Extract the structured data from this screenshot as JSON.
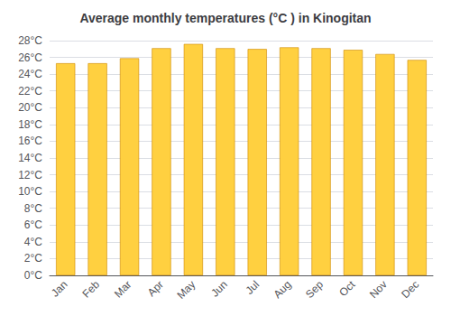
{
  "chart_data": {
    "type": "bar",
    "title": "Average monthly temperatures (°C ) in Kinogitan",
    "categories": [
      "Jan",
      "Feb",
      "Mar",
      "Apr",
      "May",
      "Jun",
      "Jul",
      "Aug",
      "Sep",
      "Oct",
      "Nov",
      "Dec"
    ],
    "values": [
      25.3,
      25.3,
      25.9,
      27.1,
      27.6,
      27.1,
      27.0,
      27.2,
      27.1,
      26.9,
      26.4,
      25.7
    ],
    "color": "#FFD040",
    "ylim": [
      0,
      28
    ],
    "yticks": [
      {
        "value": 0,
        "label": "0°C"
      },
      {
        "value": 2,
        "label": "2°C"
      },
      {
        "value": 4,
        "label": "4°C"
      },
      {
        "value": 6,
        "label": "6°C"
      },
      {
        "value": 8,
        "label": "8°C"
      },
      {
        "value": 10,
        "label": "10°C"
      },
      {
        "value": 12,
        "label": "12°C"
      },
      {
        "value": 14,
        "label": "14°C"
      },
      {
        "value": 16,
        "label": "16°C"
      },
      {
        "value": 18,
        "label": "18°C"
      },
      {
        "value": 20,
        "label": "20°C"
      },
      {
        "value": 22,
        "label": "22°C"
      },
      {
        "value": 24,
        "label": "24°C"
      },
      {
        "value": 26,
        "label": "26°C"
      },
      {
        "value": 28,
        "label": "28°C"
      }
    ],
    "grid": true
  }
}
